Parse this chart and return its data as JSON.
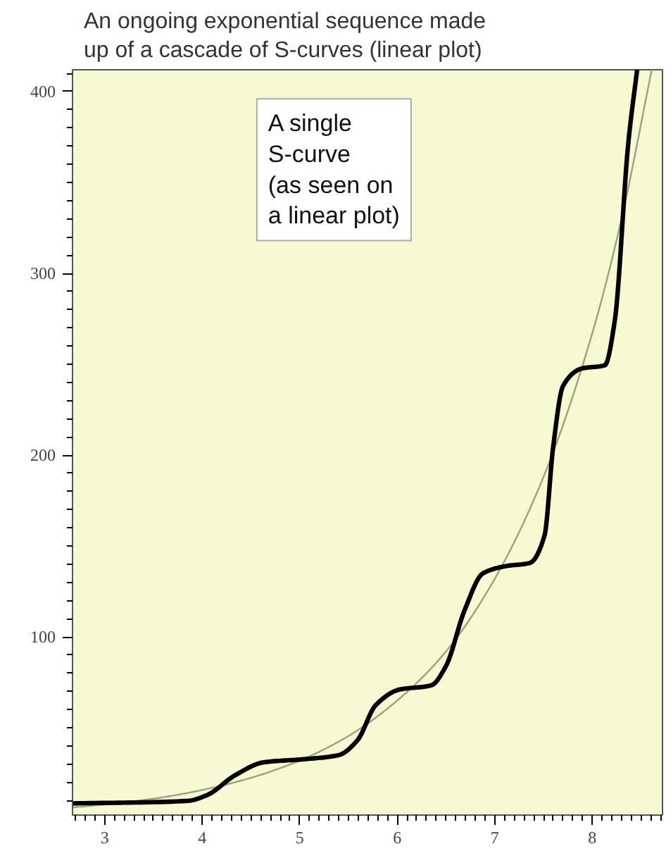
{
  "chart_data": {
    "type": "line",
    "title": "An ongoing exponential sequence made\nup of a cascade of S-curves (linear plot)",
    "annotations": [
      "A single\nS-curve\n(as seen on\na linear plot)"
    ],
    "xlim": [
      2.67,
      8.72
    ],
    "ylim": [
      2,
      412
    ],
    "xticks": [
      3,
      4,
      5,
      6,
      7,
      8
    ],
    "yticks": [
      100,
      200,
      300,
      400
    ],
    "grid": false,
    "series": [
      {
        "color": "#9aa27e",
        "x": [
          2.67,
          3,
          3.5,
          4,
          4.5,
          5,
          5.5,
          6,
          6.5,
          7,
          7.5,
          8,
          8.3,
          8.61
        ],
        "values": [
          6.2,
          7.8,
          11,
          15.8,
          22.5,
          32,
          45.5,
          65,
          92,
          132,
          188,
          267,
          330,
          412
        ]
      },
      {
        "color": "#000000",
        "x": [
          2.67,
          3.85,
          4.05,
          4.34,
          4.63,
          5.06,
          5.4,
          5.59,
          5.78,
          6.02,
          6.35,
          6.5,
          6.69,
          6.88,
          7.12,
          7.36,
          7.51,
          7.6,
          7.7,
          7.89,
          8.13,
          8.23,
          8.37,
          8.46
        ],
        "values": [
          8.4,
          9.8,
          13,
          24,
          31,
          32.8,
          35,
          43,
          62.5,
          71,
          73.4,
          84,
          114.6,
          135,
          139,
          140.7,
          155.7,
          205,
          238,
          247.6,
          249.5,
          273.7,
          372,
          412
        ]
      }
    ]
  }
}
